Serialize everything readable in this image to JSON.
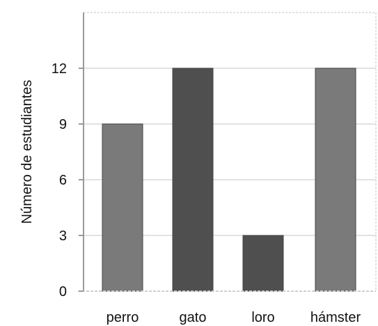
{
  "chart_data": {
    "type": "bar",
    "title": "",
    "xlabel": "",
    "ylabel": "Número de estudiantes",
    "categories": [
      "perro",
      "gato",
      "loro",
      "hámster"
    ],
    "values": [
      9,
      12,
      3,
      12
    ],
    "ylim": [
      0,
      15
    ],
    "yticks": [
      "0",
      "3",
      "6",
      "9",
      "12"
    ],
    "grid": true,
    "legend": "none",
    "colors": [
      "#7a7a7a",
      "#4f4f4f",
      "#4f4f4f",
      "#7a7a7a"
    ]
  }
}
